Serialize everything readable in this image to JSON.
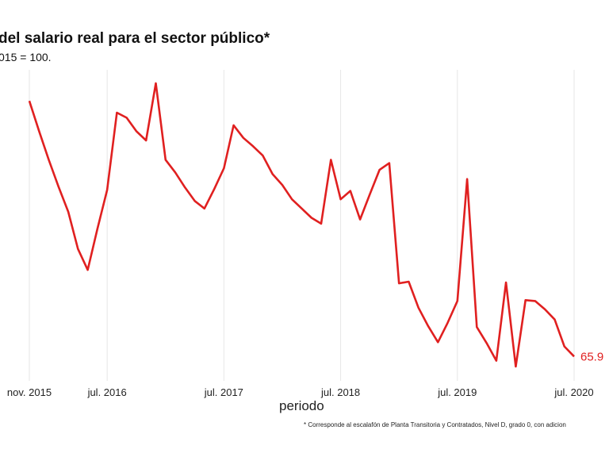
{
  "chart_data": {
    "type": "line",
    "title": "del salario real para el sector público*",
    "subtitle": "015 = 100.",
    "xlabel": "periodo",
    "ylabel": "",
    "footnote": "* Corresponde al escalafón de Planta Transitoria y Contratados, Nivel D, grado 0, con adicion",
    "grid": "vertical",
    "legend": "none",
    "line_color": "#e02020",
    "x_ticks": [
      "nov. 2015",
      "jul. 2016",
      "jul. 2017",
      "jul. 2018",
      "jul. 2019",
      "jul. 2020"
    ],
    "x_tick_index": [
      0,
      8,
      20,
      32,
      44,
      56
    ],
    "end_label": "65.9",
    "series": [
      {
        "values": [
          96.3,
          92.7,
          89.3,
          86.1,
          83.1,
          78.7,
          76.2,
          81.1,
          85.7,
          94.9,
          94.3,
          92.7,
          91.6,
          98.4,
          89.3,
          87.8,
          86.0,
          84.4,
          83.5,
          85.8,
          88.3,
          93.4,
          91.9,
          90.9,
          89.8,
          87.6,
          86.3,
          84.6,
          83.5,
          82.4,
          81.7,
          89.3,
          84.6,
          85.6,
          82.2,
          85.2,
          88.1,
          88.9,
          74.6,
          74.8,
          71.7,
          69.5,
          67.6,
          69.9,
          72.5,
          87.0,
          69.4,
          67.5,
          65.4,
          74.7,
          64.7,
          72.6,
          72.5,
          71.5,
          70.3,
          67.1,
          65.9
        ]
      }
    ]
  }
}
